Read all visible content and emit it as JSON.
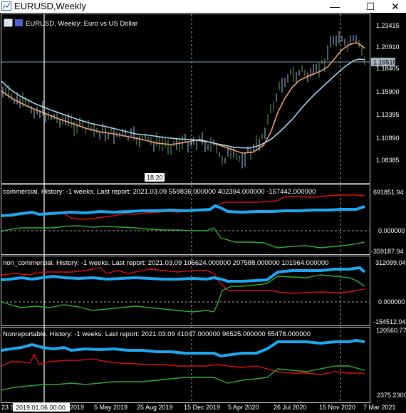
{
  "window": {
    "title": "EURUSD,Weekly",
    "minimize": "—",
    "maximize": "☐",
    "close": "✕"
  },
  "main_chart": {
    "header": "EURUSD, Weekly:  Euro vs US Dollar",
    "price_label": "1.19519",
    "crosshair_time": "18:20",
    "price_ticks": [
      "1.23415",
      "1.20910",
      "1.18405",
      "1.15900",
      "1.13395",
      "1.10890",
      "1.08385"
    ]
  },
  "indicators": [
    {
      "title": "commercial. History: -1 weeks. Last report: 2021.03.09     559836.000000  402394.000000  -157442.000000",
      "axis_top": "691851.94",
      "axis_mid": "0.000000",
      "axis_bottom": "-359187.94"
    },
    {
      "title": "non_commercial. History: -1 weeks. Last report: 2021.03.09     105624.000000  207588.000000  101964.000000",
      "axis_top": "312099.04",
      "axis_mid": "0.000000",
      "axis_bottom": "-154512.04"
    },
    {
      "title": "Nonreportable. History: -1 weeks. Last report: 2021.03.09     41047.000000  96525.000000  55478.000000",
      "axis_top": "120560.77",
      "axis_bottom": "2375.2300"
    }
  ],
  "time_axis": {
    "cursor_label": "2019.01.06 00:00",
    "labels": [
      "23 Se",
      "2019",
      "5 May 2019",
      "25 Aug 2019",
      "15 Dec 2019",
      "5 Apr 2020",
      "26 Jul 2020",
      "15 Nov 2020",
      "7 Mar 2021"
    ]
  },
  "colors": {
    "background": "#000000",
    "candle_up": "#5fa85f",
    "candle_down": "#a9c6e8",
    "ma_fast": "#f0a070",
    "ma_slow": "#a9d4ee",
    "series_blue": "#1ea8f0",
    "series_red": "#e01010",
    "series_green": "#30b030",
    "grid": "#b0b0b0"
  }
}
